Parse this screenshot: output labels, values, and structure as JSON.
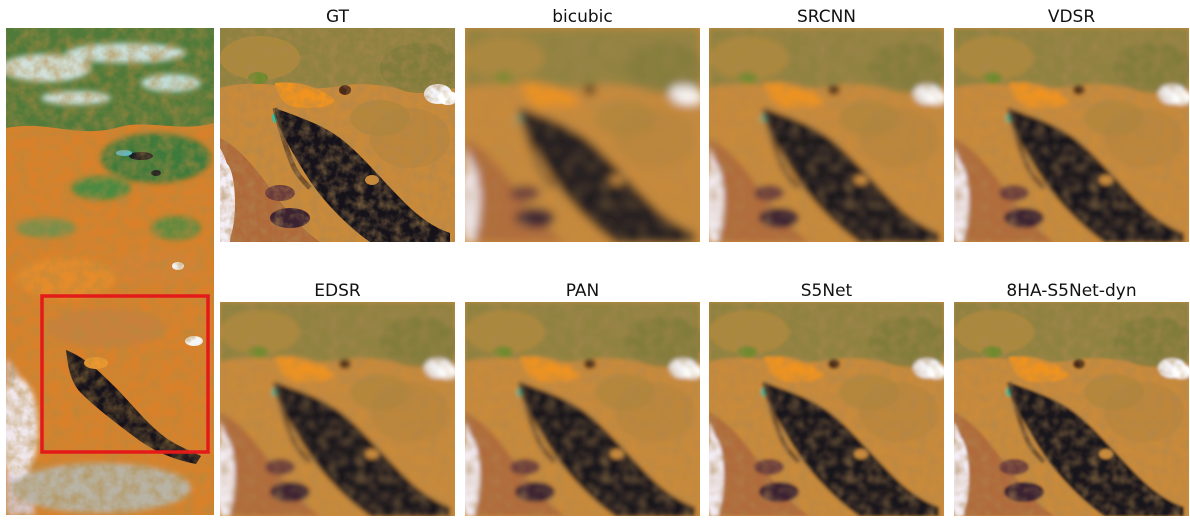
{
  "figure": {
    "panels": [
      {
        "label": "GT",
        "blur": 0
      },
      {
        "label": "bicubic",
        "blur": 4.5
      },
      {
        "label": "SRCNN",
        "blur": 3
      },
      {
        "label": "VDSR",
        "blur": 2.2
      },
      {
        "label": "EDSR",
        "blur": 2.4
      },
      {
        "label": "PAN",
        "blur": 2.2
      },
      {
        "label": "S5Net",
        "blur": 1.6
      },
      {
        "label": "8HA-S5Net-dyn",
        "blur": 1.2
      }
    ],
    "colors": {
      "terrain": "#c98a3a",
      "terrain_bright": "#e58b22",
      "water": "#15121a",
      "vegetation": "#5d7a35",
      "cloud": "#f4f4f8",
      "highlight_box": "#e41a1a"
    }
  }
}
